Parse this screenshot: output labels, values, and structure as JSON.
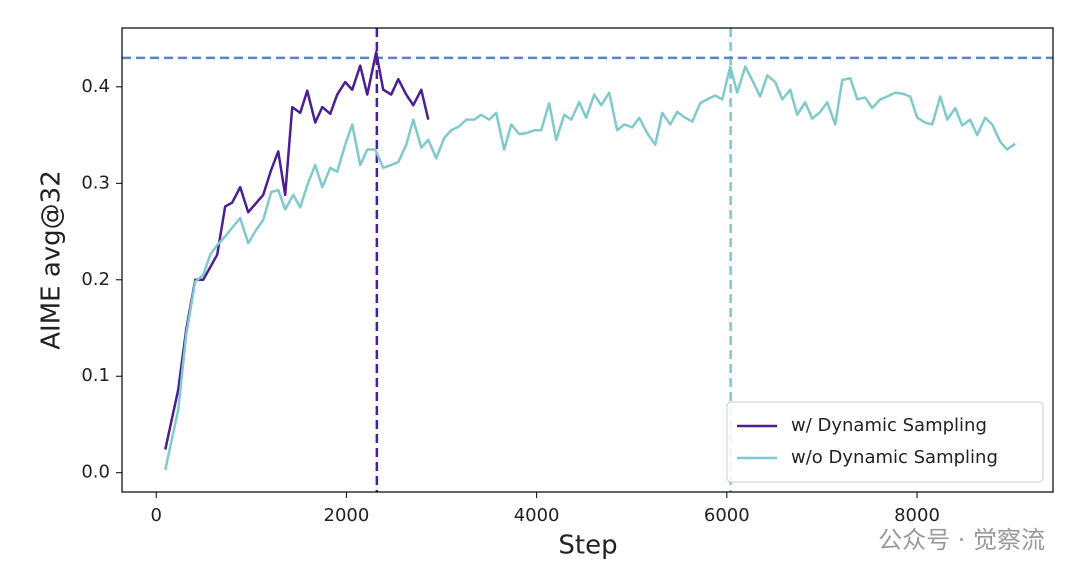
{
  "chart_data": {
    "type": "line",
    "xlabel": "Step",
    "ylabel": "AIME avg@32",
    "xlim": [
      -360,
      9430
    ],
    "ylim": [
      -0.02,
      0.461
    ],
    "xticks": [
      0,
      2000,
      4000,
      6000,
      8000
    ],
    "yticks": [
      {
        "value": 0,
        "label": "0.0"
      },
      0.1,
      0.2,
      0.3,
      0.4
    ],
    "legend": "lower right",
    "series": [
      {
        "name": "w/ Dynamic Sampling",
        "color": "#4b1f91",
        "x": [
          95,
          231,
          315,
          410,
          494,
          641,
          725,
          799,
          883,
          967,
          1125,
          1209,
          1283,
          1356,
          1430,
          1514,
          1588,
          1672,
          1746,
          1830,
          1903,
          1987,
          2061,
          2145,
          2219,
          2313,
          2387,
          2471,
          2545,
          2629,
          2703,
          2787,
          2861
        ],
        "values": [
          0.024,
          0.086,
          0.148,
          0.2,
          0.2,
          0.226,
          0.276,
          0.28,
          0.296,
          0.27,
          0.288,
          0.314,
          0.333,
          0.288,
          0.379,
          0.373,
          0.396,
          0.363,
          0.379,
          0.372,
          0.392,
          0.405,
          0.397,
          0.422,
          0.392,
          0.436,
          0.397,
          0.392,
          0.408,
          0.392,
          0.381,
          0.397,
          0.366
        ]
      },
      {
        "name": "w/o Dynamic Sampling",
        "color": "#7fcacc",
        "x": [
          95,
          231,
          315,
          410,
          494,
          568,
          641,
          725,
          799,
          883,
          967,
          1052,
          1125,
          1209,
          1283,
          1356,
          1441,
          1514,
          1588,
          1672,
          1746,
          1830,
          1903,
          1987,
          2061,
          2145,
          2219,
          2303,
          2387,
          2471,
          2545,
          2629,
          2703,
          2787,
          2861,
          2945,
          3028,
          3102,
          3186,
          3260,
          3344,
          3417,
          3502,
          3575,
          3659,
          3733,
          3817,
          3891,
          3975,
          4048,
          4132,
          4206,
          4290,
          4364,
          4448,
          4521,
          4606,
          4679,
          4763,
          4847,
          4921,
          5005,
          5079,
          5163,
          5247,
          5321,
          5405,
          5478,
          5562,
          5636,
          5720,
          5794,
          5878,
          5952,
          6036,
          6109,
          6194,
          6267,
          6351,
          6425,
          6509,
          6583,
          6667,
          6740,
          6824,
          6898,
          6982,
          7056,
          7140,
          7214,
          7298,
          7372,
          7455,
          7529,
          7613,
          7687,
          7771,
          7844,
          7928,
          8002,
          8086,
          8160,
          8244,
          8318,
          8402,
          8475,
          8559,
          8633,
          8717,
          8791,
          8875,
          8948,
          9032
        ],
        "values": [
          0.003,
          0.065,
          0.143,
          0.198,
          0.205,
          0.226,
          0.236,
          0.245,
          0.254,
          0.264,
          0.238,
          0.252,
          0.262,
          0.291,
          0.293,
          0.273,
          0.288,
          0.275,
          0.298,
          0.319,
          0.296,
          0.316,
          0.312,
          0.34,
          0.361,
          0.319,
          0.335,
          0.335,
          0.316,
          0.319,
          0.322,
          0.34,
          0.366,
          0.337,
          0.345,
          0.326,
          0.347,
          0.355,
          0.359,
          0.366,
          0.366,
          0.371,
          0.366,
          0.373,
          0.335,
          0.361,
          0.351,
          0.352,
          0.355,
          0.355,
          0.383,
          0.345,
          0.371,
          0.366,
          0.384,
          0.368,
          0.392,
          0.381,
          0.394,
          0.355,
          0.361,
          0.358,
          0.368,
          0.352,
          0.34,
          0.373,
          0.361,
          0.374,
          0.368,
          0.364,
          0.383,
          0.387,
          0.391,
          0.387,
          0.421,
          0.394,
          0.421,
          0.407,
          0.39,
          0.412,
          0.405,
          0.387,
          0.397,
          0.371,
          0.384,
          0.367,
          0.374,
          0.384,
          0.361,
          0.407,
          0.409,
          0.387,
          0.389,
          0.378,
          0.387,
          0.39,
          0.394,
          0.393,
          0.39,
          0.368,
          0.363,
          0.361,
          0.39,
          0.366,
          0.378,
          0.36,
          0.366,
          0.35,
          0.368,
          0.361,
          0.343,
          0.335,
          0.341
        ]
      }
    ],
    "hlines": [
      {
        "value": 0.43,
        "color": "#5a86c6"
      }
    ],
    "vlines": [
      {
        "value": 2320,
        "color": "#4b1f91"
      },
      {
        "value": 6040,
        "color": "#7fcacc"
      }
    ],
    "watermark": "公众号 · 觉察流"
  }
}
